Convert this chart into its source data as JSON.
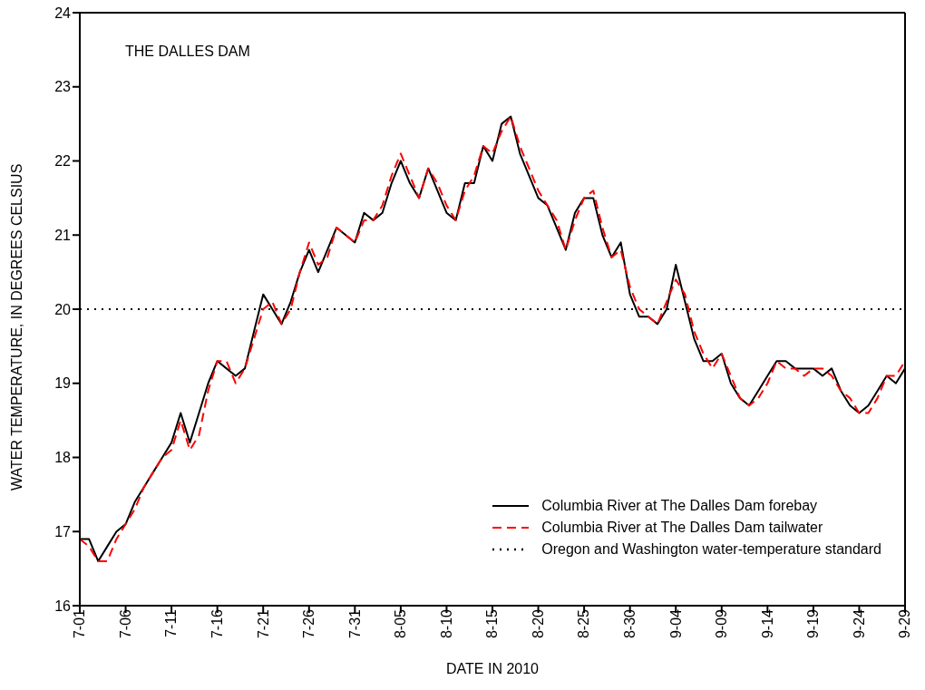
{
  "chart_data": {
    "type": "line",
    "xlabel": "DATE IN 2010",
    "ylabel": "WATER TEMPERATURE, IN DEGREES CELSIUS",
    "annotations": [
      "THE DALLES DAM"
    ],
    "x": [
      "2010-07-01",
      "2010-07-02",
      "2010-07-03",
      "2010-07-04",
      "2010-07-05",
      "2010-07-06",
      "2010-07-07",
      "2010-07-08",
      "2010-07-09",
      "2010-07-10",
      "2010-07-11",
      "2010-07-12",
      "2010-07-13",
      "2010-07-14",
      "2010-07-15",
      "2010-07-16",
      "2010-07-17",
      "2010-07-18",
      "2010-07-19",
      "2010-07-20",
      "2010-07-21",
      "2010-07-22",
      "2010-07-23",
      "2010-07-24",
      "2010-07-25",
      "2010-07-26",
      "2010-07-27",
      "2010-07-28",
      "2010-07-29",
      "2010-07-30",
      "2010-07-31",
      "2010-08-01",
      "2010-08-02",
      "2010-08-03",
      "2010-08-04",
      "2010-08-05",
      "2010-08-06",
      "2010-08-07",
      "2010-08-08",
      "2010-08-09",
      "2010-08-10",
      "2010-08-11",
      "2010-08-12",
      "2010-08-13",
      "2010-08-14",
      "2010-08-15",
      "2010-08-16",
      "2010-08-17",
      "2010-08-18",
      "2010-08-19",
      "2010-08-20",
      "2010-08-21",
      "2010-08-22",
      "2010-08-23",
      "2010-08-24",
      "2010-08-25",
      "2010-08-26",
      "2010-08-27",
      "2010-08-28",
      "2010-08-29",
      "2010-08-30",
      "2010-08-31",
      "2010-09-01",
      "2010-09-02",
      "2010-09-03",
      "2010-09-04",
      "2010-09-05",
      "2010-09-06",
      "2010-09-07",
      "2010-09-08",
      "2010-09-09",
      "2010-09-10",
      "2010-09-11",
      "2010-09-12",
      "2010-09-13",
      "2010-09-14",
      "2010-09-15",
      "2010-09-16",
      "2010-09-17",
      "2010-09-18",
      "2010-09-19",
      "2010-09-20",
      "2010-09-21",
      "2010-09-22",
      "2010-09-23",
      "2010-09-24",
      "2010-09-25",
      "2010-09-26",
      "2010-09-27",
      "2010-09-28",
      "2010-09-29"
    ],
    "series": [
      {
        "name": "Columbia River at The Dalles Dam forebay",
        "color": "#000000",
        "line_style": "solid",
        "values": [
          16.9,
          16.9,
          16.6,
          16.8,
          17.0,
          17.1,
          17.4,
          17.6,
          17.8,
          18.0,
          18.2,
          18.6,
          18.2,
          18.6,
          19.0,
          19.3,
          19.2,
          19.1,
          19.2,
          19.7,
          20.2,
          20.0,
          19.8,
          20.1,
          20.5,
          20.8,
          20.5,
          20.8,
          21.1,
          21.0,
          20.9,
          21.3,
          21.2,
          21.3,
          21.7,
          22.0,
          21.7,
          21.5,
          21.9,
          21.6,
          21.3,
          21.2,
          21.7,
          21.7,
          22.2,
          22.0,
          22.5,
          22.6,
          22.1,
          21.8,
          21.5,
          21.4,
          21.1,
          20.8,
          21.3,
          21.5,
          21.5,
          21.0,
          20.7,
          20.9,
          20.2,
          19.9,
          19.9,
          19.8,
          20.0,
          20.6,
          20.1,
          19.6,
          19.3,
          19.3,
          19.4,
          19.0,
          18.8,
          18.7,
          18.9,
          19.1,
          19.3,
          19.3,
          19.2,
          19.2,
          19.2,
          19.1,
          19.2,
          18.9,
          18.7,
          18.6,
          18.7,
          18.9,
          19.1,
          19.0,
          19.2
        ]
      },
      {
        "name": "Columbia River at The Dalles Dam tailwater",
        "color": "#ff0000",
        "line_style": "dashed",
        "values": [
          16.9,
          16.8,
          16.6,
          16.6,
          16.9,
          17.1,
          17.3,
          17.6,
          17.8,
          18.0,
          18.1,
          18.5,
          18.1,
          18.3,
          18.9,
          19.3,
          19.3,
          19.0,
          19.2,
          19.6,
          20.0,
          20.1,
          19.8,
          20.0,
          20.5,
          20.9,
          20.6,
          20.7,
          21.1,
          21.0,
          20.9,
          21.2,
          21.2,
          21.4,
          21.8,
          22.1,
          21.8,
          21.5,
          21.9,
          21.7,
          21.4,
          21.2,
          21.6,
          21.8,
          22.2,
          22.1,
          22.4,
          22.6,
          22.2,
          21.9,
          21.6,
          21.4,
          21.2,
          20.8,
          21.2,
          21.5,
          21.6,
          21.1,
          20.7,
          20.8,
          20.3,
          20.0,
          19.9,
          19.8,
          20.1,
          20.4,
          20.2,
          19.7,
          19.4,
          19.2,
          19.4,
          19.1,
          18.8,
          18.7,
          18.8,
          19.0,
          19.3,
          19.2,
          19.2,
          19.1,
          19.2,
          19.2,
          19.1,
          18.9,
          18.8,
          18.6,
          18.6,
          18.8,
          19.1,
          19.1,
          19.3
        ]
      }
    ],
    "ref_lines": [
      {
        "axis": "y",
        "value": 20,
        "label": "Oregon and Washington water-temperature standard",
        "color": "#000000",
        "line_style": "dotted"
      }
    ],
    "xlim": [
      "2010-07-01",
      "2010-09-29"
    ],
    "xticks": [
      {
        "value": "2010-07-01",
        "label": "7-01"
      },
      {
        "value": "2010-07-06",
        "label": "7-06"
      },
      {
        "value": "2010-07-11",
        "label": "7-11"
      },
      {
        "value": "2010-07-16",
        "label": "7-16"
      },
      {
        "value": "2010-07-21",
        "label": "7-21"
      },
      {
        "value": "2010-07-26",
        "label": "7-26"
      },
      {
        "value": "2010-07-31",
        "label": "7-31"
      },
      {
        "value": "2010-08-05",
        "label": "8-05"
      },
      {
        "value": "2010-08-10",
        "label": "8-10"
      },
      {
        "value": "2010-08-15",
        "label": "8-15"
      },
      {
        "value": "2010-08-20",
        "label": "8-20"
      },
      {
        "value": "2010-08-25",
        "label": "8-25"
      },
      {
        "value": "2010-08-30",
        "label": "8-30"
      },
      {
        "value": "2010-09-04",
        "label": "9-04"
      },
      {
        "value": "2010-09-09",
        "label": "9-09"
      },
      {
        "value": "2010-09-14",
        "label": "9-14"
      },
      {
        "value": "2010-09-19",
        "label": "9-19"
      },
      {
        "value": "2010-09-24",
        "label": "9-24"
      },
      {
        "value": "2010-09-29",
        "label": "9-29"
      }
    ],
    "ylim": [
      16,
      24
    ],
    "yticks": [
      16,
      17,
      18,
      19,
      20,
      21,
      22,
      23,
      24
    ],
    "legend": "bottom right",
    "marker": "none"
  }
}
